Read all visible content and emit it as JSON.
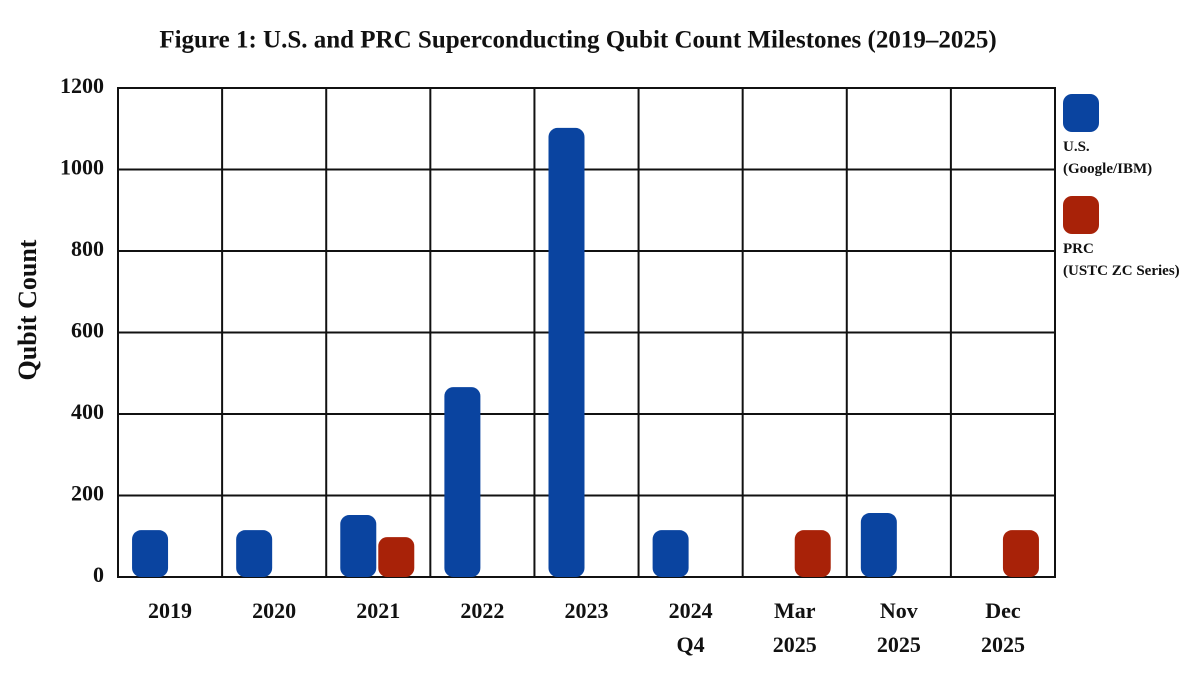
{
  "chart_data": {
    "type": "bar",
    "title": "Figure 1: U.S. and PRC Superconducting Qubit Count Milestones (2019–2025)",
    "y_label": "Qubit Count",
    "categories": [
      "2019",
      "2020",
      "2021",
      "2022",
      "2023",
      "2024\nQ4",
      "Mar\n2025",
      "Nov\n2025",
      "Dec\n2025"
    ],
    "series": [
      {
        "name": "U.S.\n(Google/IBM)",
        "color": "#0a44a0",
        "values": [
          115,
          115,
          152,
          466,
          1102,
          115,
          null,
          157,
          null
        ]
      },
      {
        "name": "PRC\n(USTC ZC Series)",
        "color": "#a82208",
        "values": [
          null,
          null,
          98,
          null,
          null,
          null,
          115,
          null,
          115
        ]
      }
    ],
    "ylim": [
      0,
      1200
    ],
    "yticks": [
      0,
      200,
      400,
      600,
      800,
      1000,
      1200
    ],
    "grid": true,
    "legend": "right"
  }
}
